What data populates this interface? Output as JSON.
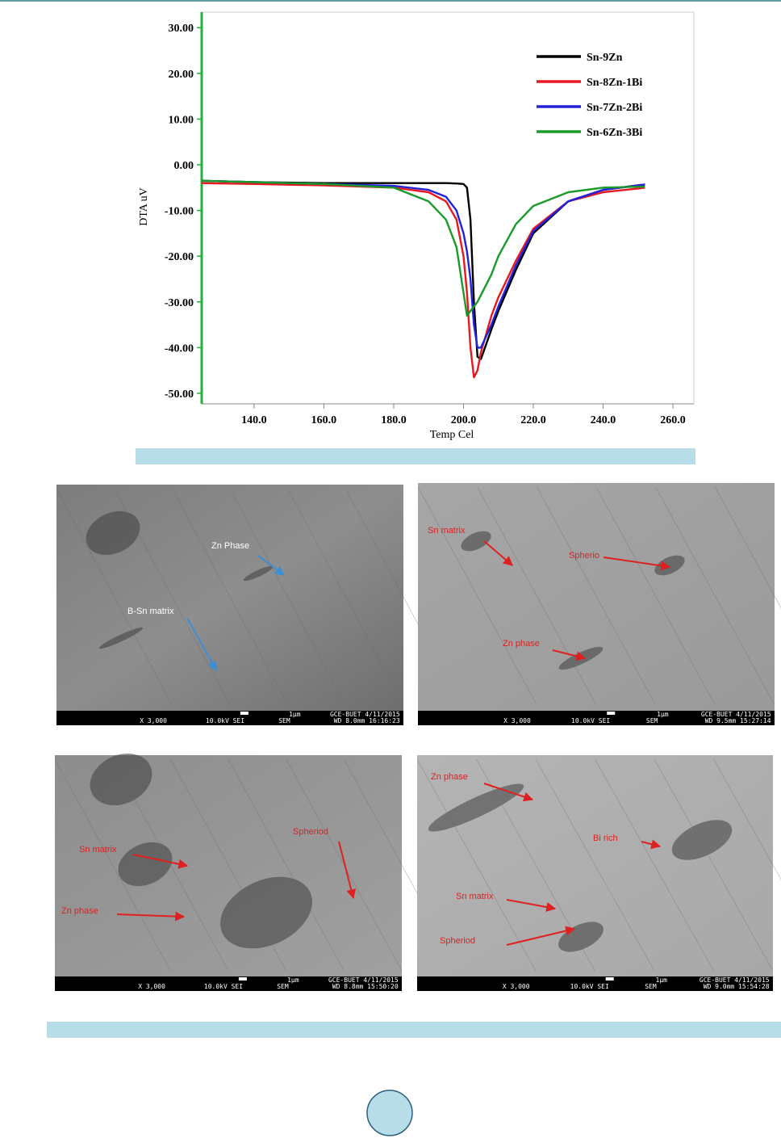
{
  "chart_data": {
    "type": "line",
    "x_label": "Temp Cel",
    "y_label": "DTA uV",
    "x": [
      125,
      140,
      160,
      180,
      190,
      195,
      198,
      200,
      201,
      202,
      203,
      204,
      205,
      208,
      210,
      215,
      220,
      230,
      240,
      250,
      252
    ],
    "series": [
      {
        "name": "Sn-9Zn",
        "color": "#000000",
        "values": [
          -3.5,
          -3.8,
          -4,
          -4,
          -4,
          -4,
          -4.1,
          -4.2,
          -5,
          -12,
          -30,
          -42,
          -42.5,
          -36,
          -32,
          -23,
          -15,
          -8,
          -5.5,
          -4.5,
          -4.3
        ]
      },
      {
        "name": "Sn-8Zn-1Bi",
        "color": "#e8181e",
        "values": [
          -4,
          -4.2,
          -4.5,
          -5,
          -6,
          -8,
          -12,
          -20,
          -28,
          -40,
          -46.5,
          -45,
          -41,
          -33,
          -29,
          -21,
          -14,
          -8,
          -6,
          -5.2,
          -5
        ]
      },
      {
        "name": "Sn-7Zn-2Bi",
        "color": "#2222dd",
        "values": [
          -3.5,
          -3.8,
          -4.2,
          -4.6,
          -5.5,
          -7,
          -10,
          -15,
          -19,
          -25,
          -35,
          -40,
          -40,
          -35,
          -31,
          -22,
          -14.5,
          -8,
          -5.5,
          -4.5,
          -4.3
        ]
      },
      {
        "name": "Sn-6Zn-3Bi",
        "color": "#1a9a2a",
        "values": [
          -3.5,
          -3.8,
          -4.2,
          -5,
          -8,
          -12,
          -18,
          -28,
          -33,
          -32,
          -31,
          -30,
          -28.5,
          -24,
          -20,
          -13,
          -9,
          -6,
          -5,
          -4.8,
          -4.8
        ]
      }
    ],
    "legend_legend_colors": null,
    "xlim": [
      125,
      266
    ],
    "ylim": [
      -52.3,
      33.4
    ],
    "xticks": [
      {
        "value": 140,
        "label": "140.0"
      },
      {
        "value": 160,
        "label": "160.0"
      },
      {
        "value": 180,
        "label": "180.0"
      },
      {
        "value": 200,
        "label": "200.0"
      },
      {
        "value": 220,
        "label": "220.0"
      },
      {
        "value": 240,
        "label": "240.0"
      },
      {
        "value": 260,
        "label": "260.0"
      }
    ],
    "yticks": [
      {
        "value": 30,
        "label": "30.00"
      },
      {
        "value": 20,
        "label": "20.00"
      },
      {
        "value": 10,
        "label": "10.00"
      },
      {
        "value": 0,
        "label": "0.00"
      },
      {
        "value": -10,
        "label": "-10.00"
      },
      {
        "value": -20,
        "label": "-20.00"
      },
      {
        "value": -30,
        "label": "-30.00"
      },
      {
        "value": -40,
        "label": "-40.00"
      },
      {
        "value": -50,
        "label": "-50.00"
      }
    ],
    "legend": "upper right",
    "grid": false
  },
  "images": [
    {
      "annotations": [
        "Zn Phase",
        "B-Sn matrix"
      ],
      "footer": {
        "magnification": "X 3,000",
        "voltage": "10.0kV SEI",
        "scale": "1μm",
        "lab": "GCE-BUET 4/11/2015",
        "mode": "SEM",
        "info": "WD 8.0mm 16:16:23"
      }
    },
    {
      "annotations": [
        "Sn matrix",
        "Spherio",
        "Zn phase"
      ],
      "footer": {
        "magnification": "X 3,000",
        "voltage": "10.0kV SEI",
        "scale": "1μm",
        "lab": "GCE-BUET 4/11/2015",
        "mode": "SEM",
        "info": "WD 9.5mm 15:27:14"
      }
    },
    {
      "annotations": [
        "Sn matrix",
        "Spheriod",
        "Zn phase"
      ],
      "footer": {
        "magnification": "X 3,000",
        "voltage": "10.0kV SEI",
        "scale": "1μm",
        "lab": "GCE-BUET 4/11/2015",
        "mode": "SEM",
        "info": "WD 8.8mm 15:50:20"
      }
    },
    {
      "annotations": [
        "Zn phase",
        "Bi rich",
        "Sn matrix",
        "Spheriod"
      ],
      "footer": {
        "magnification": "X 3,000",
        "voltage": "10.0kV SEI",
        "scale": "1μm",
        "lab": "GCE-BUET 4/11/2015",
        "mode": "SEM",
        "info": "WD 9.0mm 15:54:28"
      }
    }
  ]
}
